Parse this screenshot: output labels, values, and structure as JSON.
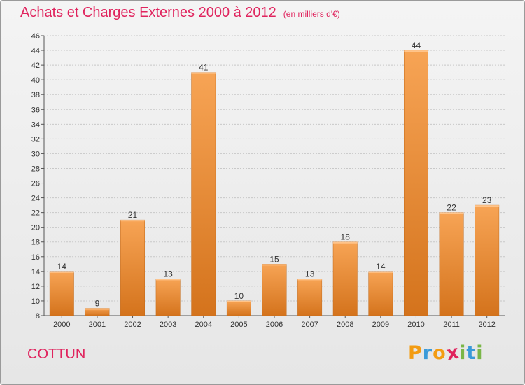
{
  "chart_data": {
    "type": "bar",
    "title": "Achats et Charges Externes 2000 à 2012",
    "subtitle": "(en milliers d'€)",
    "categories": [
      "2000",
      "2001",
      "2002",
      "2003",
      "2004",
      "2005",
      "2006",
      "2007",
      "2008",
      "2009",
      "2010",
      "2011",
      "2012"
    ],
    "values": [
      14,
      9,
      21,
      13,
      41,
      10,
      15,
      13,
      18,
      14,
      44,
      22,
      23
    ],
    "ylim": [
      8,
      46
    ],
    "yticks": [
      8,
      10,
      12,
      14,
      16,
      18,
      20,
      22,
      24,
      26,
      28,
      30,
      32,
      34,
      36,
      38,
      40,
      42,
      44,
      46
    ],
    "grid": true,
    "legend": "none",
    "bar_color": "#f0913a"
  },
  "footer": {
    "commune": "COTTUN",
    "logo": [
      "P",
      "r",
      "o",
      "x",
      "i",
      "t",
      "i"
    ],
    "logo_colors": [
      "#f39c12",
      "#3a9ad9",
      "#f39c12",
      "#e0245e",
      "#7ab648",
      "#3a9ad9",
      "#7ab648"
    ]
  }
}
